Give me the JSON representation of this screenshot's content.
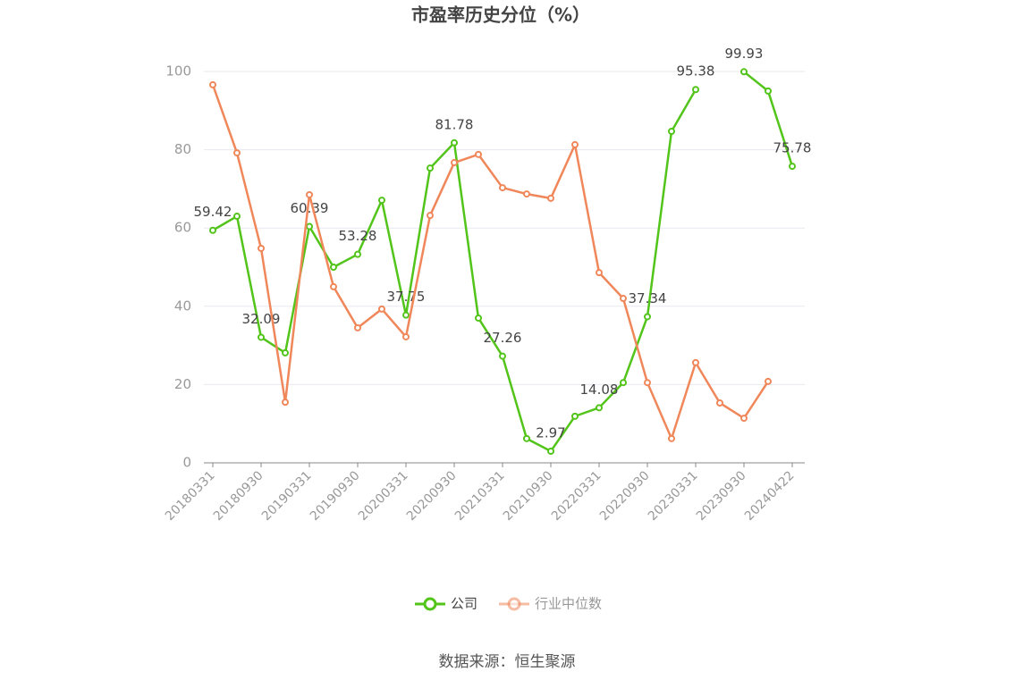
{
  "chart_data": {
    "type": "line",
    "title": "市盈率历史分位（%）",
    "categories": [
      "20180331",
      null,
      "20180930",
      null,
      "20190331",
      null,
      "20190930",
      null,
      "20200331",
      null,
      "20200930",
      null,
      "20210331",
      null,
      "20210930",
      null,
      "20220331",
      null,
      "20220930",
      null,
      "20230331",
      null,
      "20230930",
      null,
      "20240422"
    ],
    "series": [
      {
        "name": "公司",
        "color": "#52c41a",
        "values": [
          59.42,
          63.0,
          32.09,
          28.1,
          60.39,
          50.0,
          53.28,
          67.1,
          37.75,
          75.3,
          81.78,
          37.0,
          27.26,
          6.2,
          2.97,
          11.9,
          14.08,
          20.5,
          37.34,
          84.7,
          95.38,
          null,
          99.93,
          95.0,
          75.78
        ],
        "value_labels": [
          "59.42",
          null,
          "32.09",
          null,
          "60.39",
          null,
          "53.28",
          null,
          "37.75",
          null,
          "81.78",
          null,
          "27.26",
          null,
          "2.97",
          null,
          "14.08",
          null,
          "37.34",
          null,
          "95.38",
          null,
          "99.93",
          null,
          "75.78"
        ]
      },
      {
        "name": "行业中位数",
        "color": "#f0875a",
        "values": [
          96.6,
          79.2,
          54.8,
          15.5,
          68.5,
          45.0,
          34.5,
          39.3,
          32.2,
          63.2,
          76.7,
          78.8,
          70.3,
          68.7,
          67.6,
          81.3,
          48.6,
          42.0,
          20.5,
          6.2,
          25.6,
          15.3,
          11.4,
          20.8,
          null
        ]
      }
    ],
    "ylim": [
      0,
      100
    ],
    "yticks": [
      0,
      20,
      40,
      60,
      80,
      100
    ],
    "grid": true,
    "source": "数据来源：恒生聚源"
  }
}
